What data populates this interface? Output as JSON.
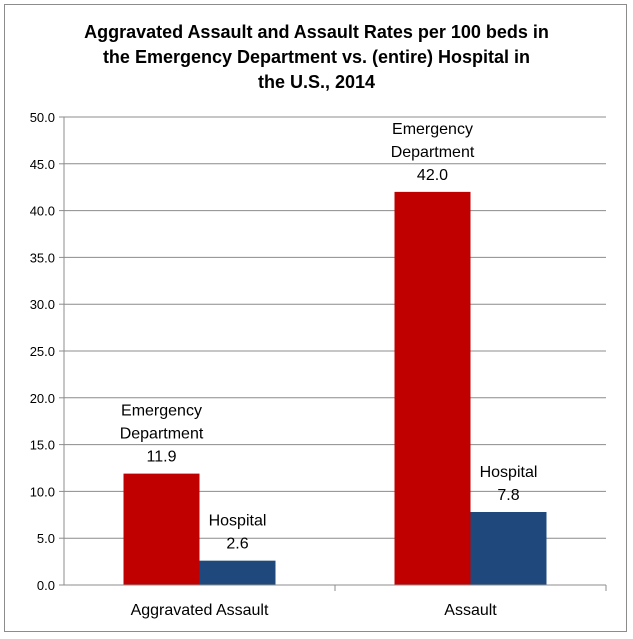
{
  "chart_data": {
    "type": "bar",
    "title_lines": [
      "Aggravated Assault and Assault Rates per 100 beds in",
      "the Emergency Department vs. (entire) Hospital in",
      "the U.S., 2014"
    ],
    "categories": [
      "Aggravated Assault",
      "Assault"
    ],
    "series": [
      {
        "name": "Emergency Department",
        "label_lines": [
          "Emergency",
          "Department"
        ],
        "color": "#c00000",
        "values": [
          11.9,
          42.0
        ],
        "value_labels": [
          "11.9",
          "42.0"
        ]
      },
      {
        "name": "Hospital",
        "label_lines": [
          "Hospital"
        ],
        "color": "#1f497d",
        "values": [
          2.6,
          7.8
        ],
        "value_labels": [
          "2.6",
          "7.8"
        ]
      }
    ],
    "ylim": [
      0,
      50
    ],
    "y_ticks": [
      "0.0",
      "5.0",
      "10.0",
      "15.0",
      "20.0",
      "25.0",
      "30.0",
      "35.0",
      "40.0",
      "45.0",
      "50.0"
    ],
    "grid": true,
    "legend": "none"
  }
}
